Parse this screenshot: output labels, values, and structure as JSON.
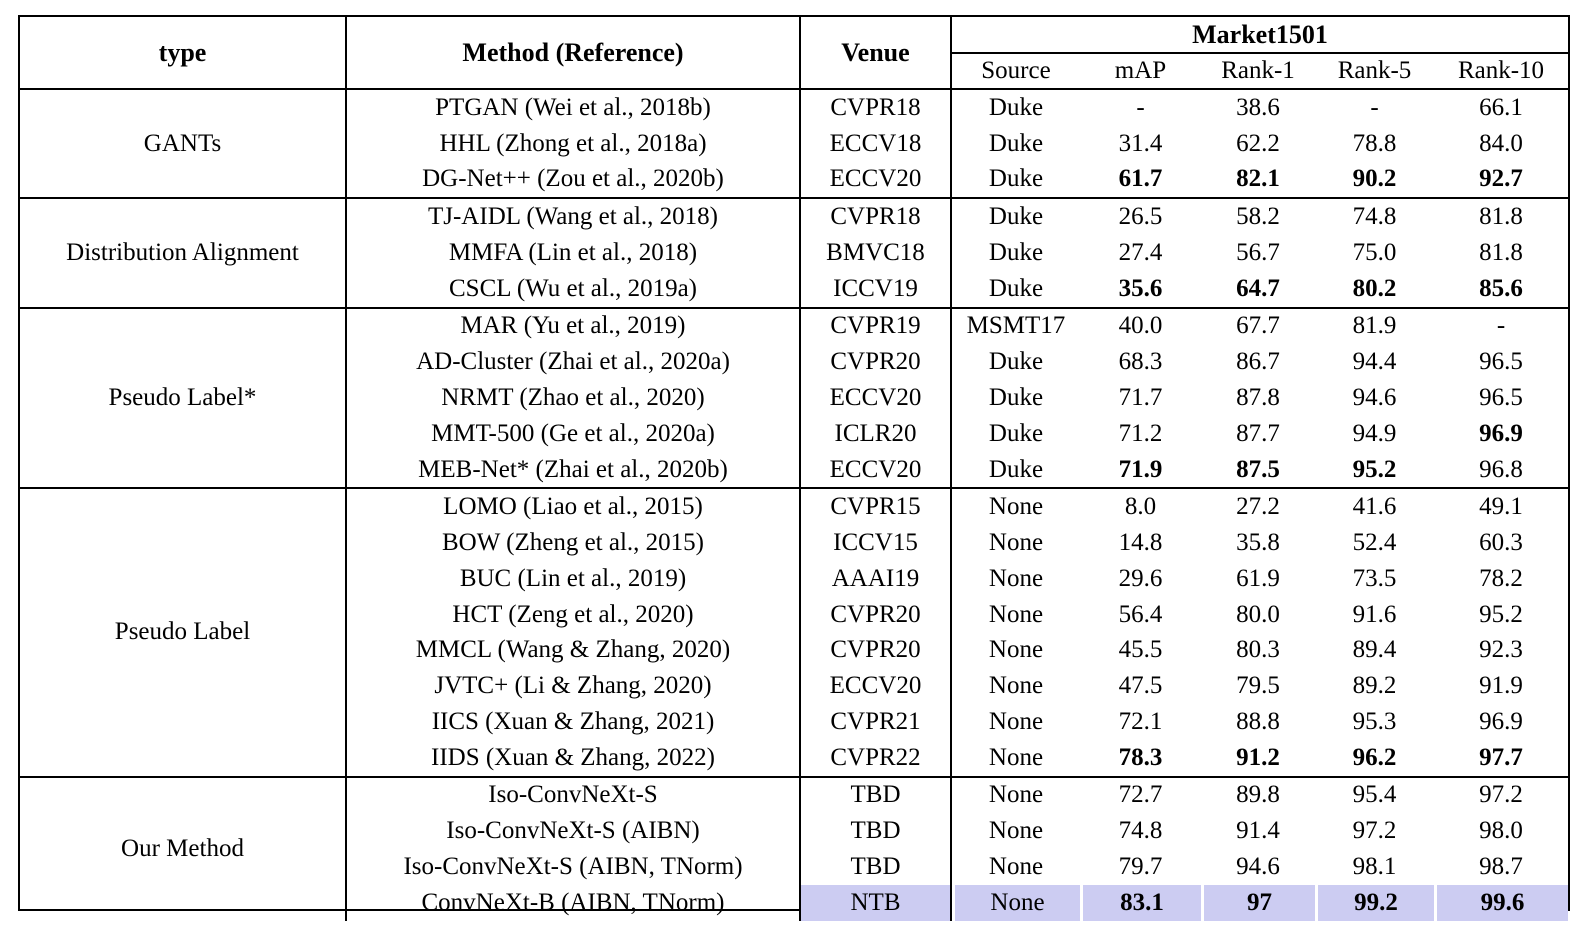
{
  "page": {
    "background": "#ffffff"
  },
  "table": {
    "columns": [
      "type",
      "Method (Reference)",
      "Venue"
    ],
    "dataset_header": "Market1501",
    "sub_columns": [
      "Source",
      "mAP",
      "Rank-1",
      "Rank-5",
      "Rank-10"
    ],
    "highlight_color": "#ccccf2",
    "groups": [
      {
        "type": "GANTs",
        "rows": [
          {
            "method": "PTGAN (Wei et al., 2018b)",
            "venue": "CVPR18",
            "cells": [
              "Duke",
              "-",
              "38.6",
              "-",
              "66.1"
            ],
            "bold": [
              false,
              false,
              false,
              false,
              false
            ],
            "highlight": false
          },
          {
            "method": "HHL (Zhong et al., 2018a)",
            "venue": "ECCV18",
            "cells": [
              "Duke",
              "31.4",
              "62.2",
              "78.8",
              "84.0"
            ],
            "bold": [
              false,
              false,
              false,
              false,
              false
            ],
            "highlight": false
          },
          {
            "method": "DG-Net++ (Zou et al., 2020b)",
            "venue": "ECCV20",
            "cells": [
              "Duke",
              "61.7",
              "82.1",
              "90.2",
              "92.7"
            ],
            "bold": [
              false,
              true,
              true,
              true,
              true
            ],
            "highlight": false
          }
        ]
      },
      {
        "type": "Distribution Alignment",
        "rows": [
          {
            "method": "TJ-AIDL (Wang et al., 2018)",
            "venue": "CVPR18",
            "cells": [
              "Duke",
              "26.5",
              "58.2",
              "74.8",
              "81.8"
            ],
            "bold": [
              false,
              false,
              false,
              false,
              false
            ],
            "highlight": false
          },
          {
            "method": "MMFA (Lin et al., 2018)",
            "venue": "BMVC18",
            "cells": [
              "Duke",
              "27.4",
              "56.7",
              "75.0",
              "81.8"
            ],
            "bold": [
              false,
              false,
              false,
              false,
              false
            ],
            "highlight": false
          },
          {
            "method": "CSCL (Wu et al., 2019a)",
            "venue": "ICCV19",
            "cells": [
              "Duke",
              "35.6",
              "64.7",
              "80.2",
              "85.6"
            ],
            "bold": [
              false,
              true,
              true,
              true,
              true
            ],
            "highlight": false
          }
        ]
      },
      {
        "type": "Pseudo Label*",
        "rows": [
          {
            "method": "MAR (Yu et al., 2019)",
            "venue": "CVPR19",
            "cells": [
              "MSMT17",
              "40.0",
              "67.7",
              "81.9",
              "-"
            ],
            "bold": [
              false,
              false,
              false,
              false,
              false
            ],
            "highlight": false
          },
          {
            "method": "AD-Cluster (Zhai et al., 2020a)",
            "venue": "CVPR20",
            "cells": [
              "Duke",
              "68.3",
              "86.7",
              "94.4",
              "96.5"
            ],
            "bold": [
              false,
              false,
              false,
              false,
              false
            ],
            "highlight": false
          },
          {
            "method": "NRMT (Zhao et al., 2020)",
            "venue": "ECCV20",
            "cells": [
              "Duke",
              "71.7",
              "87.8",
              "94.6",
              "96.5"
            ],
            "bold": [
              false,
              false,
              false,
              false,
              false
            ],
            "highlight": false
          },
          {
            "method": "MMT-500 (Ge et al., 2020a)",
            "venue": "ICLR20",
            "cells": [
              "Duke",
              "71.2",
              "87.7",
              "94.9",
              "96.9"
            ],
            "bold": [
              false,
              false,
              false,
              false,
              true
            ],
            "highlight": false
          },
          {
            "method": "MEB-Net* (Zhai et al., 2020b)",
            "venue": "ECCV20",
            "cells": [
              "Duke",
              "71.9",
              "87.5",
              "95.2",
              "96.8"
            ],
            "bold": [
              false,
              true,
              true,
              true,
              false
            ],
            "highlight": false
          }
        ]
      },
      {
        "type": "Pseudo Label",
        "rows": [
          {
            "method": "LOMO (Liao et al., 2015)",
            "venue": "CVPR15",
            "cells": [
              "None",
              "8.0",
              "27.2",
              "41.6",
              "49.1"
            ],
            "bold": [
              false,
              false,
              false,
              false,
              false
            ],
            "highlight": false
          },
          {
            "method": "BOW (Zheng et al., 2015)",
            "venue": "ICCV15",
            "cells": [
              "None",
              "14.8",
              "35.8",
              "52.4",
              "60.3"
            ],
            "bold": [
              false,
              false,
              false,
              false,
              false
            ],
            "highlight": false
          },
          {
            "method": "BUC (Lin et al., 2019)",
            "venue": "AAAI19",
            "cells": [
              "None",
              "29.6",
              "61.9",
              "73.5",
              "78.2"
            ],
            "bold": [
              false,
              false,
              false,
              false,
              false
            ],
            "highlight": false
          },
          {
            "method": "HCT (Zeng et al., 2020)",
            "venue": "CVPR20",
            "cells": [
              "None",
              "56.4",
              "80.0",
              "91.6",
              "95.2"
            ],
            "bold": [
              false,
              false,
              false,
              false,
              false
            ],
            "highlight": false
          },
          {
            "method": "MMCL (Wang & Zhang, 2020)",
            "venue": "CVPR20",
            "cells": [
              "None",
              "45.5",
              "80.3",
              "89.4",
              "92.3"
            ],
            "bold": [
              false,
              false,
              false,
              false,
              false
            ],
            "highlight": false
          },
          {
            "method": "JVTC+ (Li & Zhang, 2020)",
            "venue": "ECCV20",
            "cells": [
              "None",
              "47.5",
              "79.5",
              "89.2",
              "91.9"
            ],
            "bold": [
              false,
              false,
              false,
              false,
              false
            ],
            "highlight": false
          },
          {
            "method": "IICS (Xuan & Zhang, 2021)",
            "venue": "CVPR21",
            "cells": [
              "None",
              "72.1",
              "88.8",
              "95.3",
              "96.9"
            ],
            "bold": [
              false,
              false,
              false,
              false,
              false
            ],
            "highlight": false
          },
          {
            "method": "IIDS (Xuan & Zhang, 2022)",
            "venue": "CVPR22",
            "cells": [
              "None",
              "78.3",
              "91.2",
              "96.2",
              "97.7"
            ],
            "bold": [
              false,
              true,
              true,
              true,
              true
            ],
            "highlight": false
          }
        ]
      },
      {
        "type": "Our Method",
        "rows": [
          {
            "method": "Iso-ConvNeXt-S",
            "venue": "TBD",
            "cells": [
              "None",
              "72.7",
              "89.8",
              "95.4",
              "97.2"
            ],
            "bold": [
              false,
              false,
              false,
              false,
              false
            ],
            "highlight": false
          },
          {
            "method": "Iso-ConvNeXt-S (AIBN)",
            "venue": "TBD",
            "cells": [
              "None",
              "74.8",
              "91.4",
              "97.2",
              "98.0"
            ],
            "bold": [
              false,
              false,
              false,
              false,
              false
            ],
            "highlight": false
          },
          {
            "method": "Iso-ConvNeXt-S (AIBN, TNorm)",
            "venue": "TBD",
            "cells": [
              "None",
              "79.7",
              "94.6",
              "98.1",
              "98.7"
            ],
            "bold": [
              false,
              false,
              false,
              false,
              false
            ],
            "highlight": false
          },
          {
            "method": "ConvNeXt-B (AIBN, TNorm)",
            "venue": "NTB",
            "cells": [
              "None",
              "83.1",
              "97",
              "99.2",
              "99.6"
            ],
            "bold": [
              false,
              true,
              true,
              true,
              true
            ],
            "highlight": true
          }
        ]
      }
    ]
  }
}
